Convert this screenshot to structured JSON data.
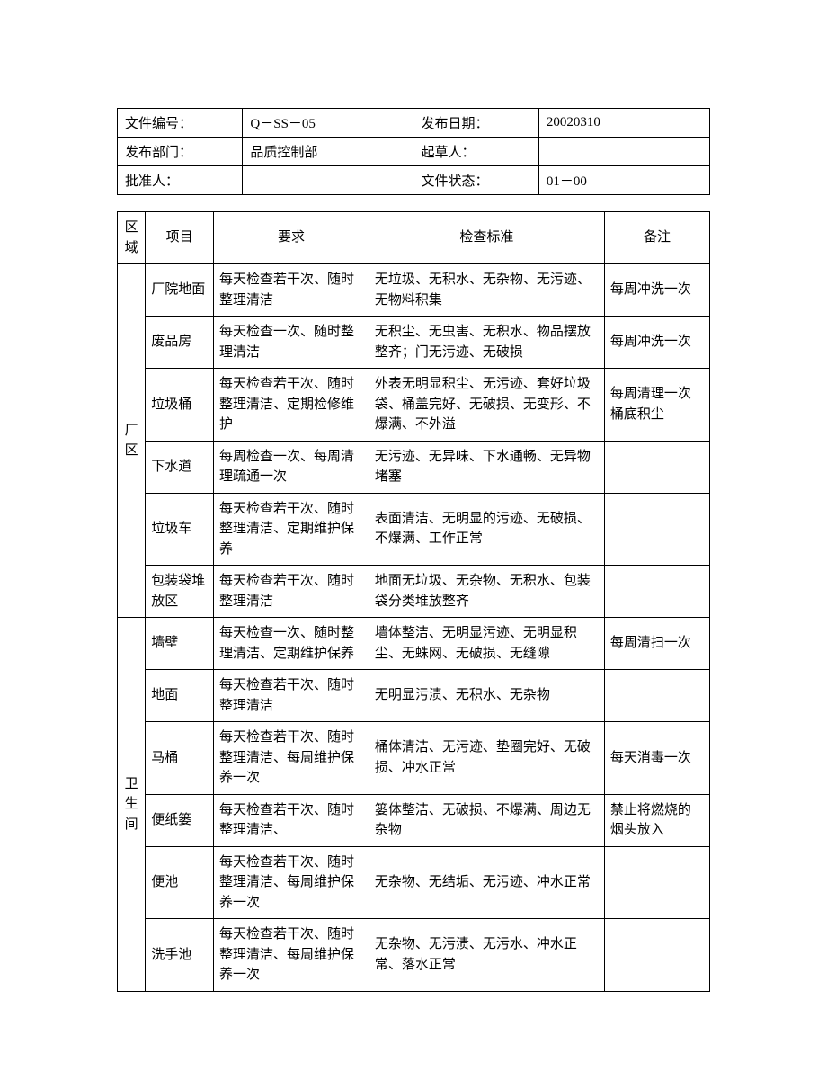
{
  "header": {
    "doc_number_label": "文件编号：",
    "doc_number": "Q－SS－05",
    "publish_date_label": "发布日期：",
    "publish_date": "20020310",
    "publish_dept_label": "发布部门：",
    "publish_dept": "品质控制部",
    "drafter_label": "起草人：",
    "drafter": "",
    "approver_label": "批准人：",
    "approver": "",
    "doc_status_label": "文件状态：",
    "doc_status": "01－00"
  },
  "table_headers": {
    "area": "区域",
    "item": "项目",
    "requirement": "要求",
    "standard": "检查标准",
    "note": "备注"
  },
  "areas": [
    {
      "name": "厂区",
      "rows": [
        {
          "item": "厂院地面",
          "requirement": "每天检查若干次、随时整理清洁",
          "standard": "无垃圾、无积水、无杂物、无污迹、无物料积集",
          "note": "每周冲洗一次"
        },
        {
          "item": "废品房",
          "requirement": "每天检查一次、随时整理清洁",
          "standard": "无积尘、无虫害、无积水、物品摆放整齐；门无污迹、无破损",
          "note": "每周冲洗一次"
        },
        {
          "item": "垃圾桶",
          "requirement": "每天检查若干次、随时整理清洁、定期检修维护",
          "standard": "外表无明显积尘、无污迹、套好垃圾袋、桶盖完好、无破损、无变形、不爆满、不外溢",
          "note": "每周清理一次桶底积尘"
        },
        {
          "item": "下水道",
          "requirement": "每周检查一次、每周清理疏通一次",
          "standard": "无污迹、无异味、下水通畅、无异物堵塞",
          "note": ""
        },
        {
          "item": "垃圾车",
          "requirement": "每天检查若干次、随时整理清洁、定期维护保养",
          "standard": "表面清洁、无明显的污迹、无破损、不爆满、工作正常",
          "note": ""
        },
        {
          "item": "包装袋堆放区",
          "requirement": "每天检查若干次、随时整理清洁",
          "standard": "地面无垃圾、无杂物、无积水、包装袋分类堆放整齐",
          "note": ""
        }
      ]
    },
    {
      "name": "卫生间",
      "rows": [
        {
          "item": "墙壁",
          "requirement": "每天检查一次、随时整理清洁、定期维护保养",
          "standard": "墙体整洁、无明显污迹、无明显积尘、无蛛网、无破损、无缝隙",
          "note": "每周清扫一次"
        },
        {
          "item": "地面",
          "requirement": "每天检查若干次、随时整理清洁",
          "standard": "无明显污渍、无积水、无杂物",
          "note": ""
        },
        {
          "item": "马桶",
          "requirement": "每天检查若干次、随时整理清洁、每周维护保养一次",
          "standard": "桶体清洁、无污迹、垫圈完好、无破损、冲水正常",
          "note": "每天消毒一次"
        },
        {
          "item": "便纸篓",
          "requirement": "每天检查若干次、随时整理清洁、",
          "standard": "篓体整洁、无破损、不爆满、周边无杂物",
          "note": "禁止将燃烧的烟头放入"
        },
        {
          "item": "便池",
          "requirement": "每天检查若干次、随时整理清洁、每周维护保养一次",
          "standard": "无杂物、无结垢、无污迹、冲水正常",
          "note": ""
        },
        {
          "item": "洗手池",
          "requirement": "每天检查若干次、随时整理清洁、每周维护保养一次",
          "standard": "无杂物、无污渍、无污水、冲水正常、落水正常",
          "note": ""
        }
      ]
    }
  ],
  "styling": {
    "border_color": "#000000",
    "background_color": "#ffffff",
    "text_color": "#000000",
    "font_family": "SimSun",
    "header_font_size": 15,
    "body_font_size": 15,
    "col_widths": {
      "area": 28,
      "item": 68,
      "requirement": 155,
      "standard": 235,
      "note": 105
    }
  }
}
